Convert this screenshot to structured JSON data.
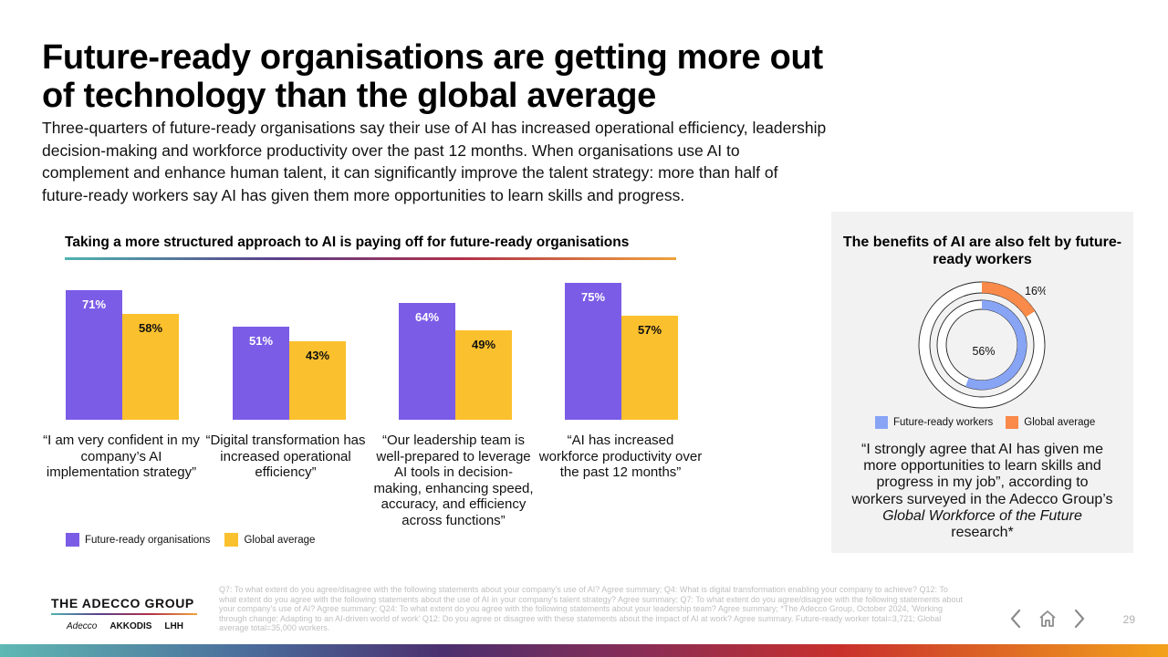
{
  "title": "Future-ready organisations are getting more out of technology than the global average",
  "intro": "Three-quarters of future-ready organisations say their use of AI has increased operational efficiency, leadership decision-making and workforce productivity over the past 12 months. When organisations use AI to complement and enhance human talent, it can significantly improve the talent strategy: more than half of future-ready workers say AI has given them more opportunities to learn skills and progress.",
  "colors": {
    "future_ready": "#7b5ce6",
    "global_average": "#fbc02d",
    "donut_future": "#88a4f5",
    "donut_global": "#f98a4a"
  },
  "chart_data": [
    {
      "type": "bar",
      "title": "Taking a more structured approach to AI is paying off for future-ready organisations",
      "categories": [
        "“I am very confident in my company’s AI implementation strategy”",
        "“Digital transformation has increased operational efficiency”",
        "“Our leadership team is well-prepared to leverage AI tools in decision-making, enhancing speed, accuracy, and efficiency across functions”",
        "“AI has increased workforce productivity over the past 12 months”"
      ],
      "series": [
        {
          "name": "Future-ready organisations",
          "values": [
            71,
            51,
            64,
            75
          ],
          "labels": [
            "71%",
            "51%",
            "64%",
            "75%"
          ]
        },
        {
          "name": "Global average",
          "values": [
            58,
            43,
            49,
            57
          ],
          "labels": [
            "58%",
            "43%",
            "49%",
            "57%"
          ]
        }
      ],
      "ylim": [
        0,
        100
      ],
      "legend": "bottom-left"
    },
    {
      "type": "pie",
      "title": "The benefits of AI are also felt by future-ready workers",
      "series": [
        {
          "name": "Future-ready workers",
          "values": [
            56
          ],
          "labels": [
            "56%"
          ]
        },
        {
          "name": "Global average",
          "values": [
            16
          ],
          "labels": [
            "16%"
          ]
        }
      ],
      "legend": "bottom"
    }
  ],
  "quote": {
    "before": "“I strongly agree that AI has given me more opportunities to learn skills and progress in my job”, according to workers surveyed in the Adecco Group’s ",
    "emph": "Global Workforce of the Future",
    "after": " research*"
  },
  "footnote": "Q7: To what extent do you agree/disagree with the following statements about your company's use of AI? Agree summary; Q4: What is digital transformation enabling your company to achieve? Q12: To what extent do you agree with the following statements about the use of AI in your company's talent strategy? Agree summary; Q7: To what extent do you agree/disagree with the following statements about your company's use of AI? Agree summary; Q24: To what extent do you agree with the following statements about your leadership team? Agree summary; *The Adecco Group, October 2024, 'Working through change: Adapting to an AI-driven world of work' Q12: Do you agree or disagree with these statements about the impact of AI at work? Agree summary. Future-ready worker total=3,721; Global average total=35,000 workers.",
  "brand": {
    "name": "THE ADECCO GROUP",
    "subs": [
      "Adecco",
      "AKKODIS",
      "LHH"
    ]
  },
  "nav": {
    "prev_icon": "chevron-left-icon",
    "home_icon": "home-icon",
    "next_icon": "chevron-right-icon",
    "page_number": "29"
  }
}
